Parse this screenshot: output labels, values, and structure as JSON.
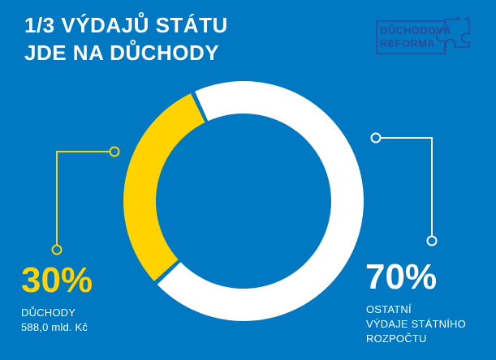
{
  "header": {
    "title_line1": "1/3 VÝDAJŮ STÁTU",
    "title_line2": "JDE NA DŮCHODY"
  },
  "logo": {
    "line1": "DŮCHODOVÁ",
    "line2": "REFORMA",
    "icon": "puzzle-piece-icon"
  },
  "colors": {
    "background": "#0078c2",
    "pensions": "#ffd200",
    "other": "#ffffff",
    "logo": "#2e4a9a"
  },
  "chart_data": {
    "type": "pie",
    "categories": [
      "DŮCHODY",
      "OSTATNÍ VÝDAJE STÁTNÍHO ROZPOČTU"
    ],
    "values": [
      30,
      70
    ],
    "unit": "%",
    "labels": {
      "pensions": {
        "value": "30%",
        "line1": "DŮCHODY",
        "line2": "588,0 mld. Kč"
      },
      "other": {
        "value": "70%",
        "line1": "OSTATNÍ",
        "line2": "VÝDAJE STÁTNÍHO",
        "line3": "ROZPOČTU"
      }
    }
  }
}
